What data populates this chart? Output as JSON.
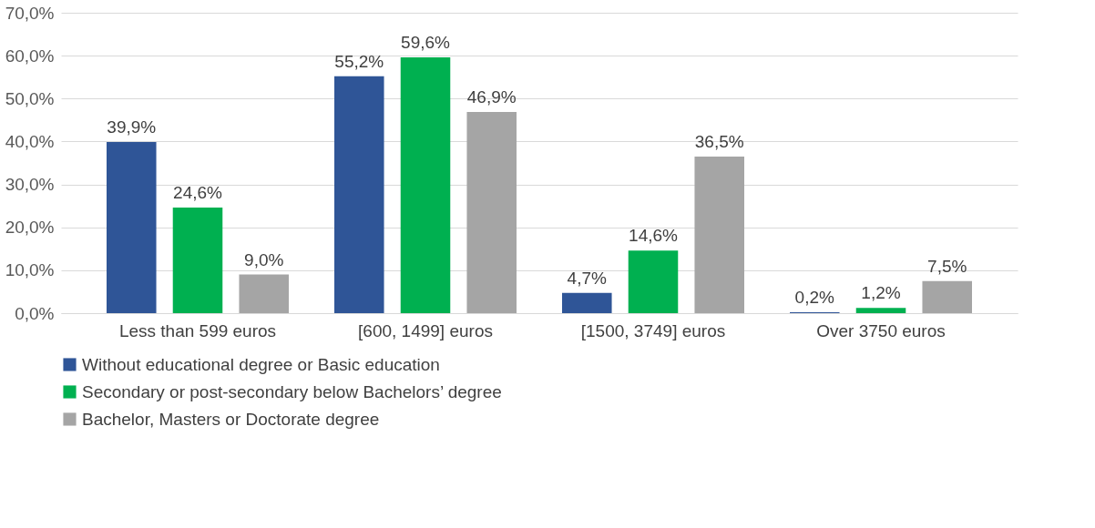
{
  "chart_data": {
    "type": "bar",
    "categories": [
      "Less than 599 euros",
      "[600, 1499] euros",
      "[1500, 3749] euros",
      "Over 3750 euros"
    ],
    "series": [
      {
        "name": "Without educational degree or Basic education",
        "color": "#2f5597",
        "values": [
          39.9,
          55.2,
          4.7,
          0.2
        ],
        "value_labels": [
          "39,9%",
          "55,2%",
          "4,7%",
          "0,2%"
        ]
      },
      {
        "name": "Secondary or post-secondary below Bachelors’ degree",
        "color": "#00b050",
        "values": [
          24.6,
          59.6,
          14.6,
          1.2
        ],
        "value_labels": [
          "24,6%",
          "59,6%",
          "14,6%",
          "1,2%"
        ]
      },
      {
        "name": "Bachelor, Masters or Doctorate degree",
        "color": "#a5a5a5",
        "values": [
          9.0,
          46.9,
          36.5,
          7.5
        ],
        "value_labels": [
          "9,0%",
          "46,9%",
          "36,5%",
          "7,5%"
        ]
      }
    ],
    "ylim": [
      0,
      70
    ],
    "yticks": [
      {
        "value": 0,
        "label": "0,0%"
      },
      {
        "value": 10,
        "label": "10,0%"
      },
      {
        "value": 20,
        "label": "20,0%"
      },
      {
        "value": 30,
        "label": "30,0%"
      },
      {
        "value": 40,
        "label": "40,0%"
      },
      {
        "value": 50,
        "label": "50,0%"
      },
      {
        "value": 60,
        "label": "60,0%"
      },
      {
        "value": 70,
        "label": "70,0%"
      }
    ],
    "grid": "y",
    "legend": "bottom"
  }
}
